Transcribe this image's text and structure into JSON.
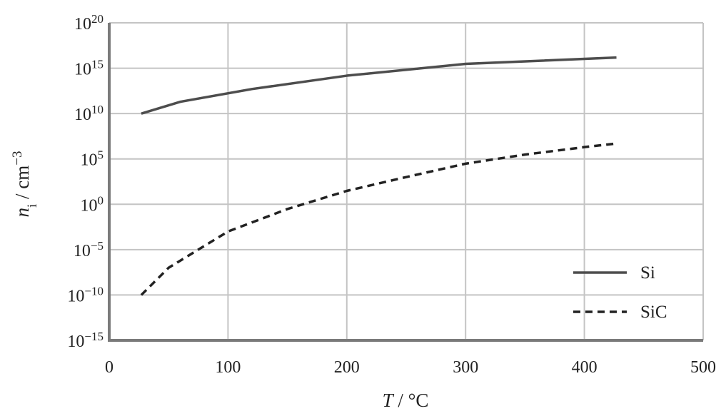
{
  "chart_data": {
    "type": "line",
    "xlabel": {
      "italic": "T",
      "rest": " / °C"
    },
    "ylabel": {
      "italic": "n",
      "sub": "i",
      "rest": " / cm",
      "sup": "−3"
    },
    "xlim": [
      0,
      500
    ],
    "y_scale": "log10",
    "ylim_exponent": [
      -15,
      20
    ],
    "x_ticks": [
      0,
      100,
      200,
      300,
      400,
      500
    ],
    "y_ticks": [
      {
        "base": "10",
        "exp": "20"
      },
      {
        "base": "10",
        "exp": "15"
      },
      {
        "base": "10",
        "exp": "10"
      },
      {
        "base": "10",
        "exp": "5"
      },
      {
        "base": "10",
        "exp": "0"
      },
      {
        "base": "10",
        "exp": "−5"
      },
      {
        "base": "10",
        "exp": "−10"
      },
      {
        "base": "10",
        "exp": "−15"
      }
    ],
    "y_tick_exponents": [
      20,
      15,
      10,
      5,
      0,
      -5,
      -10,
      -15
    ],
    "grid": true,
    "legend_position": "bottom-right",
    "series": [
      {
        "name": "Si",
        "style": "solid",
        "color": "#4d4d4d",
        "x": [
          27,
          60,
          120,
          200,
          300,
          427
        ],
        "y": [
          10000000000.0,
          200000000000.0,
          5000000000000.0,
          150000000000000.0,
          3000000000000000.0,
          1.5e+16
        ]
      },
      {
        "name": "SiC",
        "style": "dashed",
        "color": "#222222",
        "x": [
          27,
          50,
          100,
          150,
          200,
          250,
          300,
          350,
          400,
          427
        ],
        "y": [
          1e-10,
          1e-07,
          0.001,
          0.3,
          30.0,
          1000.0,
          30000.0,
          300000.0,
          2000000.0,
          5000000.0
        ]
      }
    ]
  }
}
